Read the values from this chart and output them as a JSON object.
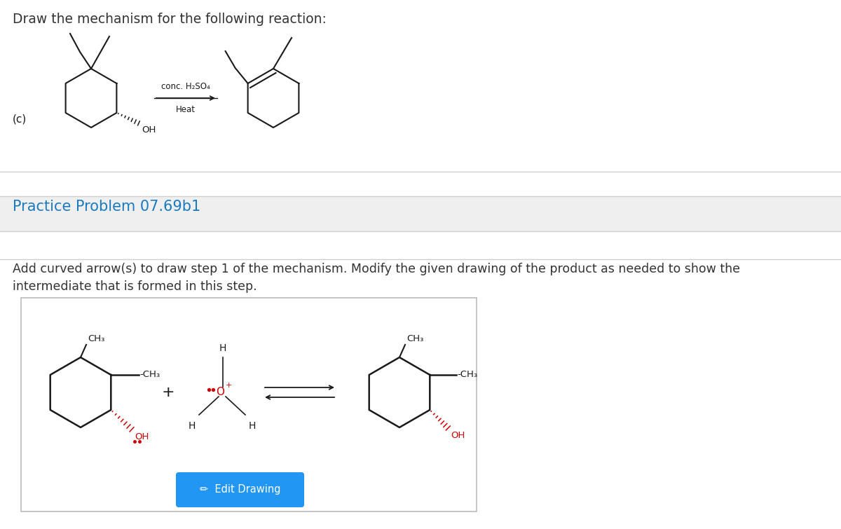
{
  "title_text": "Draw the mechanism for the following reaction:",
  "title_color": "#333333",
  "title_fontsize": 13.5,
  "practice_label": "Practice Problem 07.69b1",
  "practice_color": "#1a7abf",
  "practice_fontsize": 15,
  "instruction_line1": "Add curved arrow(s) to draw step 1 of the mechanism. Modify the given drawing of the product as needed to show the",
  "instruction_line2": "intermediate that is formed in this step.",
  "instruction_color": "#333333",
  "instruction_fontsize": 12.5,
  "bg_white": "#ffffff",
  "bg_gray": "#efefef",
  "box_edge_color": "#bbbbbb",
  "edit_btn_color": "#2196F3",
  "edit_btn_text": "Edit Drawing",
  "edit_btn_text_color": "#ffffff",
  "red_color": "#cc0000",
  "black_color": "#1a1a1a"
}
